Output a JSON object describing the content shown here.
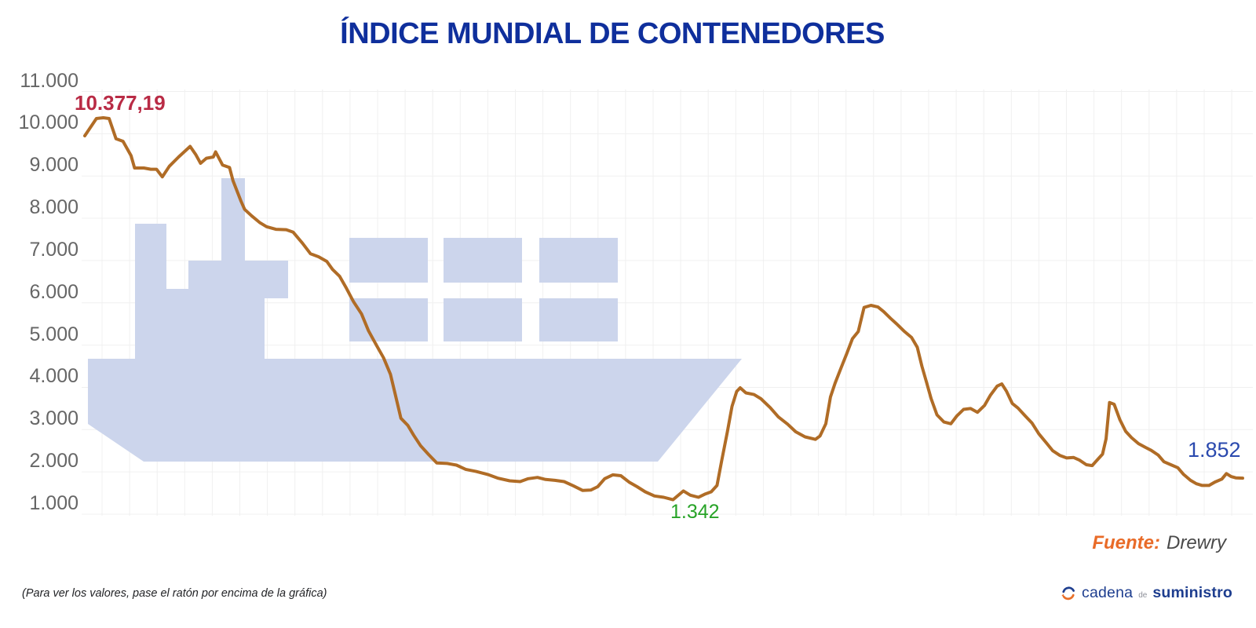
{
  "title": "ÍNDICE MUNDIAL DE CONTENEDORES",
  "annotations": {
    "peak": "10.377,19",
    "min": "1.342",
    "last": "1.852"
  },
  "source": {
    "label": "Fuente:",
    "value": "Drewry"
  },
  "footer_note": "(Para ver los valores, pase el ratón por encima de la gráfica)",
  "logo": {
    "word1": "cadena",
    "word2": "de",
    "word3": "suministro"
  },
  "colors": {
    "title": "#0f2f9c",
    "line": "#b06c26",
    "peak": "#b92b45",
    "min": "#27a327",
    "last": "#2a49ae",
    "source_label": "#e96b28",
    "source_value": "#4a4a4a",
    "ship": "#ccd5ec",
    "grid": "#f0f0f0",
    "axis_label": "#666666",
    "logo_blue": "#1e3e8f",
    "logo_orange": "#e8702a"
  },
  "chart_data": {
    "type": "line",
    "title": "ÍNDICE MUNDIAL DE CONTENEDORES",
    "ylabel": "",
    "xlabel": "",
    "ylim": [
      1000,
      11000
    ],
    "grid": true,
    "legend": false,
    "y_ticks": [
      "1.000",
      "2.000",
      "3.000",
      "4.000",
      "5.000",
      "6.000",
      "7.000",
      "8.000",
      "9.000",
      "10.000",
      "11.000"
    ],
    "y_tick_values": [
      1000,
      2000,
      3000,
      4000,
      5000,
      6000,
      7000,
      8000,
      9000,
      10000,
      11000
    ],
    "peak_value": 10377.19,
    "min_value": 1342,
    "last_value": 1852,
    "series_name": "Índice mundial de contenedores (Drewry)",
    "x_unit": "percent-of-timeline",
    "points": [
      [
        0,
        9950
      ],
      [
        1,
        10360
      ],
      [
        1.6,
        10377
      ],
      [
        2.1,
        10360
      ],
      [
        2.7,
        9880
      ],
      [
        3.3,
        9820
      ],
      [
        4,
        9480
      ],
      [
        4.3,
        9190
      ],
      [
        5.1,
        9190
      ],
      [
        5.7,
        9160
      ],
      [
        6.2,
        9160
      ],
      [
        6.7,
        8980
      ],
      [
        7.3,
        9230
      ],
      [
        8.1,
        9450
      ],
      [
        9.1,
        9700
      ],
      [
        9.6,
        9500
      ],
      [
        10,
        9300
      ],
      [
        10.5,
        9420
      ],
      [
        11.1,
        9450
      ],
      [
        11.3,
        9570
      ],
      [
        11.9,
        9260
      ],
      [
        12.5,
        9200
      ],
      [
        12.8,
        8890
      ],
      [
        13.5,
        8400
      ],
      [
        13.8,
        8210
      ],
      [
        14.4,
        8060
      ],
      [
        15.1,
        7900
      ],
      [
        15.7,
        7800
      ],
      [
        16.5,
        7740
      ],
      [
        17.4,
        7730
      ],
      [
        18,
        7670
      ],
      [
        18.8,
        7410
      ],
      [
        19.5,
        7160
      ],
      [
        20.2,
        7090
      ],
      [
        20.9,
        6980
      ],
      [
        21.4,
        6790
      ],
      [
        22,
        6630
      ],
      [
        22.6,
        6340
      ],
      [
        23.2,
        6030
      ],
      [
        23.9,
        5740
      ],
      [
        24.5,
        5340
      ],
      [
        25.2,
        4990
      ],
      [
        25.8,
        4700
      ],
      [
        26.4,
        4310
      ],
      [
        26.8,
        3850
      ],
      [
        27.3,
        3270
      ],
      [
        27.9,
        3100
      ],
      [
        28.4,
        2870
      ],
      [
        29,
        2620
      ],
      [
        29.7,
        2410
      ],
      [
        30.4,
        2210
      ],
      [
        31.3,
        2200
      ],
      [
        32.1,
        2160
      ],
      [
        32.9,
        2060
      ],
      [
        33.8,
        2010
      ],
      [
        34.8,
        1940
      ],
      [
        35.7,
        1850
      ],
      [
        36.7,
        1790
      ],
      [
        37.6,
        1770
      ],
      [
        38.3,
        1840
      ],
      [
        39.1,
        1870
      ],
      [
        39.8,
        1820
      ],
      [
        40.6,
        1800
      ],
      [
        41.4,
        1770
      ],
      [
        42.2,
        1670
      ],
      [
        43,
        1560
      ],
      [
        43.7,
        1570
      ],
      [
        44.3,
        1650
      ],
      [
        44.9,
        1840
      ],
      [
        45.6,
        1930
      ],
      [
        46.3,
        1910
      ],
      [
        47,
        1760
      ],
      [
        47.7,
        1650
      ],
      [
        48.4,
        1530
      ],
      [
        49.2,
        1430
      ],
      [
        50,
        1400
      ],
      [
        50.8,
        1342
      ],
      [
        51.7,
        1550
      ],
      [
        52.3,
        1450
      ],
      [
        53,
        1400
      ],
      [
        53.6,
        1480
      ],
      [
        54.1,
        1530
      ],
      [
        54.6,
        1680
      ],
      [
        55,
        2260
      ],
      [
        55.5,
        2950
      ],
      [
        55.9,
        3550
      ],
      [
        56.3,
        3900
      ],
      [
        56.6,
        3990
      ],
      [
        57.1,
        3870
      ],
      [
        57.8,
        3830
      ],
      [
        58.4,
        3730
      ],
      [
        59.2,
        3520
      ],
      [
        59.9,
        3300
      ],
      [
        60.7,
        3130
      ],
      [
        61.4,
        2950
      ],
      [
        62.2,
        2830
      ],
      [
        63.1,
        2770
      ],
      [
        63.5,
        2850
      ],
      [
        64,
        3140
      ],
      [
        64.4,
        3770
      ],
      [
        64.8,
        4100
      ],
      [
        65.3,
        4450
      ],
      [
        65.8,
        4790
      ],
      [
        66.3,
        5150
      ],
      [
        66.8,
        5320
      ],
      [
        67.3,
        5890
      ],
      [
        67.9,
        5940
      ],
      [
        68.5,
        5900
      ],
      [
        69,
        5790
      ],
      [
        69.6,
        5630
      ],
      [
        70.2,
        5480
      ],
      [
        70.8,
        5320
      ],
      [
        71.4,
        5180
      ],
      [
        71.9,
        4950
      ],
      [
        72.3,
        4500
      ],
      [
        72.7,
        4120
      ],
      [
        73.1,
        3730
      ],
      [
        73.6,
        3350
      ],
      [
        74.2,
        3180
      ],
      [
        74.8,
        3140
      ],
      [
        75.3,
        3320
      ],
      [
        75.9,
        3480
      ],
      [
        76.5,
        3500
      ],
      [
        77.1,
        3410
      ],
      [
        77.7,
        3570
      ],
      [
        78.2,
        3810
      ],
      [
        78.8,
        4030
      ],
      [
        79.2,
        4080
      ],
      [
        79.6,
        3910
      ],
      [
        80.1,
        3620
      ],
      [
        80.6,
        3510
      ],
      [
        81.2,
        3330
      ],
      [
        81.8,
        3160
      ],
      [
        82.4,
        2900
      ],
      [
        83.1,
        2670
      ],
      [
        83.6,
        2500
      ],
      [
        84.2,
        2390
      ],
      [
        84.8,
        2330
      ],
      [
        85.4,
        2340
      ],
      [
        85.9,
        2280
      ],
      [
        86.5,
        2170
      ],
      [
        87,
        2150
      ],
      [
        87.5,
        2300
      ],
      [
        87.9,
        2420
      ],
      [
        88.2,
        2780
      ],
      [
        88.5,
        3640
      ],
      [
        88.9,
        3600
      ],
      [
        89.4,
        3230
      ],
      [
        89.9,
        2960
      ],
      [
        90.4,
        2810
      ],
      [
        91,
        2670
      ],
      [
        91.6,
        2580
      ],
      [
        92.1,
        2510
      ],
      [
        92.7,
        2400
      ],
      [
        93.2,
        2240
      ],
      [
        93.8,
        2170
      ],
      [
        94.4,
        2100
      ],
      [
        94.9,
        1940
      ],
      [
        95.5,
        1800
      ],
      [
        96,
        1720
      ],
      [
        96.5,
        1680
      ],
      [
        97.1,
        1680
      ],
      [
        97.6,
        1760
      ],
      [
        98.2,
        1830
      ],
      [
        98.6,
        1960
      ],
      [
        99,
        1890
      ],
      [
        99.4,
        1860
      ],
      [
        100,
        1852
      ]
    ]
  }
}
